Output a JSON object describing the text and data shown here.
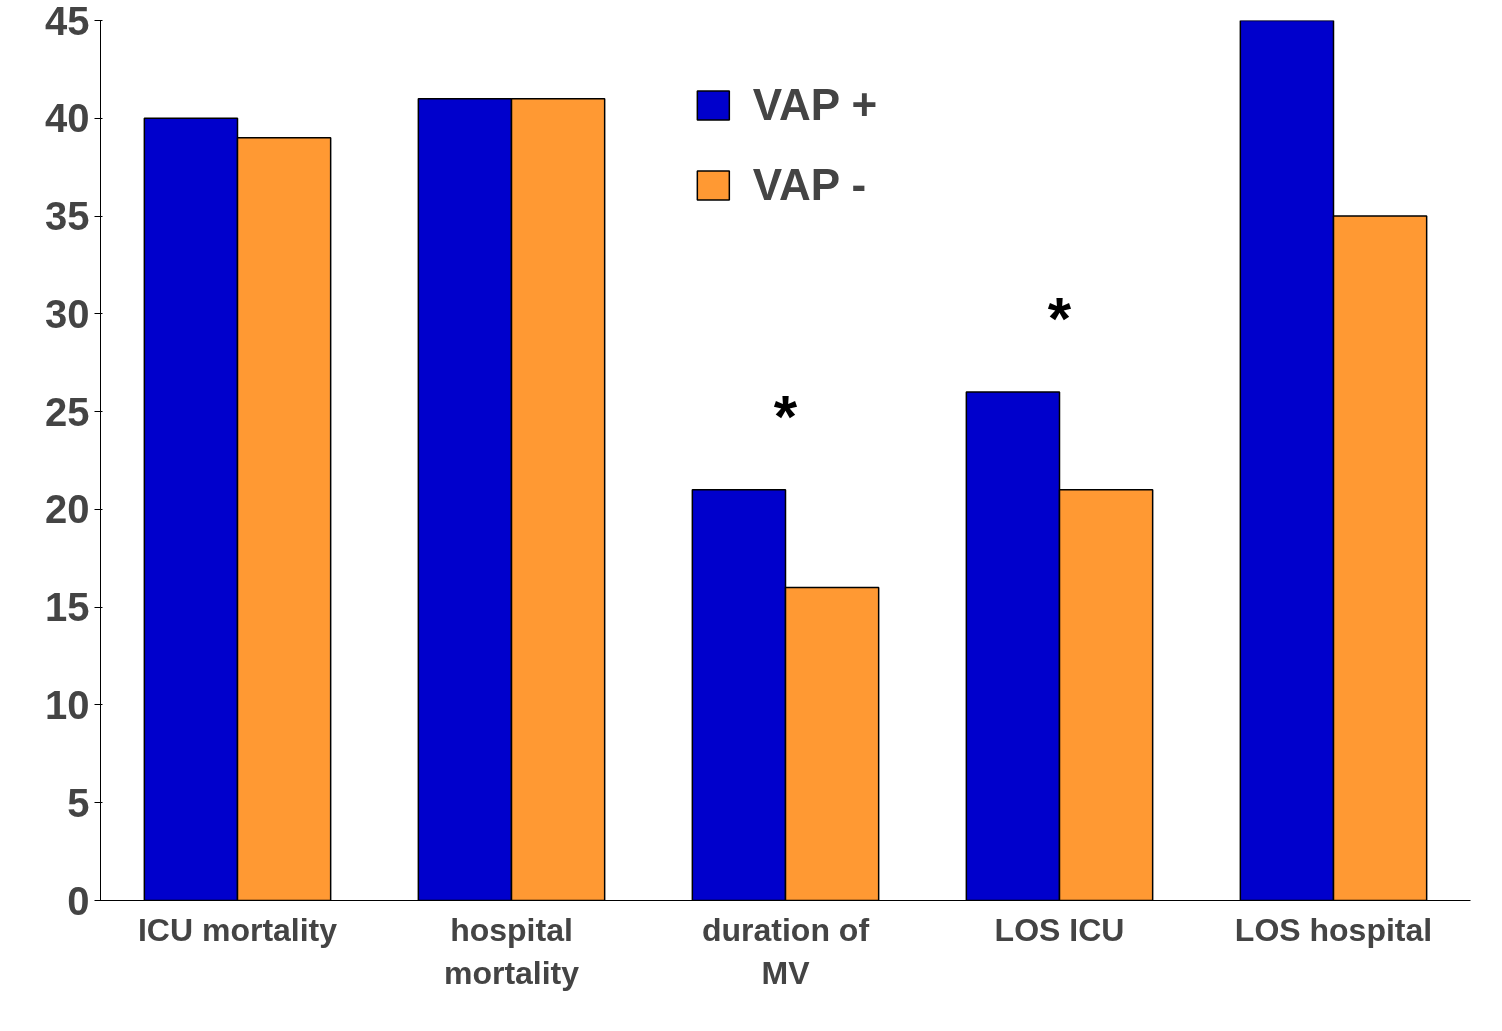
{
  "chart_data": {
    "type": "bar",
    "categories": [
      "ICU mortality",
      "hospital mortality",
      "duration of MV",
      "LOS ICU",
      "LOS hospital"
    ],
    "series": [
      {
        "name": "VAP +",
        "color": "#0000cc",
        "values": [
          40,
          41,
          21,
          26,
          45
        ]
      },
      {
        "name": "VAP -",
        "color": "#ff9933",
        "values": [
          39,
          41,
          16,
          21,
          35
        ]
      }
    ],
    "ylim": [
      0,
      45
    ],
    "yticks": [
      0,
      5,
      10,
      15,
      20,
      25,
      30,
      35,
      40,
      45
    ],
    "grid": false,
    "legend": "top",
    "annotations": [
      "*",
      "*"
    ]
  }
}
